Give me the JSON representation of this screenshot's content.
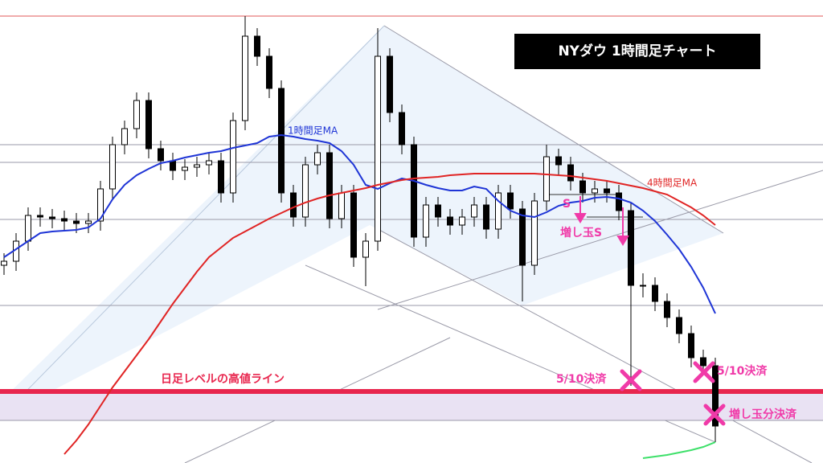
{
  "chart_data": {
    "type": "candlestick",
    "title": "NYダウ 1時間足チャート",
    "ylim": [
      0,
      576
    ],
    "open": [
      246,
      251,
      276,
      308,
      306,
      304,
      301,
      298,
      301,
      341,
      396,
      416,
      451,
      391,
      376,
      364,
      368,
      371,
      376,
      336,
      426,
      531,
      506,
      466,
      336,
      306,
      371,
      386,
      304,
      336,
      256,
      276,
      506,
      436,
      396,
      281,
      321,
      306,
      296,
      306,
      321,
      291,
      336,
      316,
      246,
      326,
      381,
      371,
      351,
      336,
      341,
      336,
      314,
      221,
      221,
      201,
      181,
      161,
      131,
      121
    ],
    "high": [
      261,
      286,
      318,
      318,
      316,
      314,
      311,
      311,
      351,
      406,
      426,
      461,
      461,
      401,
      386,
      378,
      381,
      386,
      386,
      436,
      556,
      541,
      516,
      476,
      346,
      381,
      396,
      396,
      346,
      346,
      286,
      541,
      516,
      446,
      406,
      331,
      331,
      316,
      316,
      331,
      331,
      346,
      346,
      326,
      336,
      396,
      391,
      381,
      361,
      351,
      351,
      346,
      324,
      236,
      231,
      211,
      191,
      171,
      141,
      131
    ],
    "low": [
      234,
      239,
      264,
      294,
      292,
      289,
      286,
      286,
      289,
      329,
      384,
      404,
      379,
      364,
      352,
      352,
      356,
      359,
      324,
      324,
      414,
      494,
      454,
      324,
      294,
      294,
      359,
      292,
      292,
      244,
      220,
      264,
      424,
      384,
      269,
      269,
      294,
      284,
      284,
      294,
      279,
      279,
      304,
      201,
      234,
      314,
      359,
      339,
      324,
      324,
      324,
      302,
      96,
      206,
      189,
      169,
      149,
      119,
      109,
      26
    ],
    "close": [
      251,
      276,
      308,
      306,
      304,
      301,
      298,
      301,
      341,
      396,
      416,
      451,
      391,
      376,
      364,
      368,
      371,
      376,
      336,
      426,
      531,
      506,
      466,
      336,
      306,
      371,
      386,
      304,
      336,
      256,
      276,
      506,
      436,
      396,
      281,
      321,
      306,
      296,
      306,
      321,
      291,
      336,
      316,
      246,
      326,
      381,
      371,
      351,
      336,
      341,
      336,
      314,
      221,
      221,
      201,
      181,
      161,
      131,
      121,
      46
    ],
    "up_color": "#ffffff",
    "down_color": "#000000",
    "series": [
      {
        "name": "1時間足MA",
        "color": "#1f35d6",
        "values": [
          256,
          266,
          276,
          286,
          288,
          289,
          290,
          293,
          304,
          328,
          346,
          358,
          366,
          373,
          376,
          380,
          383,
          386,
          388,
          392,
          395,
          398,
          406,
          408,
          406,
          403,
          401,
          398,
          388,
          371,
          346,
          341,
          348,
          354,
          351,
          346,
          342,
          339,
          339,
          344,
          341,
          326,
          314,
          308,
          306,
          312,
          320,
          324,
          326,
          330,
          331,
          329,
          324,
          314,
          301,
          284,
          266,
          244,
          218,
          186
        ]
      },
      {
        "name": "4時間足MA",
        "color": "#e02424",
        "values": [
          null,
          null,
          null,
          null,
          null,
          11,
          28,
          48,
          71,
          94,
          114,
          134,
          154,
          176,
          198,
          218,
          238,
          256,
          268,
          280,
          288,
          296,
          304,
          311,
          318,
          324,
          329,
          333,
          336,
          339,
          342,
          346,
          349,
          352,
          354,
          355,
          356,
          358,
          359,
          360,
          360,
          360,
          360,
          360,
          360,
          359,
          358,
          357,
          355,
          353,
          351,
          348,
          345,
          342,
          338,
          334,
          326,
          318,
          308,
          296
        ]
      },
      {
        "color": "#3ee06a",
        "values": [
          null,
          null,
          null,
          null,
          null,
          null,
          null,
          null,
          null,
          null,
          null,
          null,
          null,
          null,
          null,
          null,
          null,
          null,
          null,
          null,
          null,
          null,
          null,
          null,
          null,
          null,
          null,
          null,
          null,
          null,
          null,
          null,
          null,
          null,
          null,
          null,
          null,
          null,
          null,
          null,
          null,
          null,
          null,
          null,
          null,
          null,
          null,
          null,
          null,
          null,
          null,
          null,
          null,
          6,
          8,
          10,
          13,
          16,
          20,
          26
        ]
      }
    ],
    "levels": [
      {
        "value": 556,
        "color": "#e05a5a",
        "width": 1
      },
      {
        "value": 396,
        "color": "#9a9aa8",
        "width": 1
      },
      {
        "value": 374,
        "color": "#9a9aa8",
        "width": 1
      },
      {
        "value": 303,
        "color": "#9a9aa8",
        "width": 1
      },
      {
        "value": 196,
        "color": "#9a9aa8",
        "width": 1
      },
      {
        "value": 53,
        "color": "#9a9aa8",
        "width": 1
      },
      {
        "value": 89,
        "color": "#e8264e",
        "width": 6
      }
    ],
    "band": {
      "from": 53,
      "to": 89,
      "color": "#e9e2f3"
    },
    "annotations": [
      "1時間足MA",
      "4時間足MA",
      "S",
      "増し玉S",
      "日足レベルの高値ライン",
      "5/10決済",
      "5/10決済",
      "増し玉分決済"
    ]
  }
}
